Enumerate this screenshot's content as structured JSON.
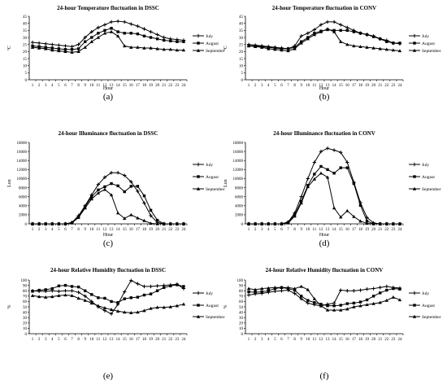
{
  "chart_data": [
    {
      "type": "line",
      "panel": "(a)",
      "title": "24-hour Temperature fluctuation in DSSC",
      "xlabel": "Hour",
      "ylabel": "ºC",
      "x": [
        1,
        2,
        3,
        4,
        5,
        6,
        7,
        8,
        9,
        10,
        11,
        12,
        13,
        14,
        15,
        16,
        17,
        18,
        19,
        20,
        21,
        22,
        23,
        24
      ],
      "ylim": [
        0,
        45
      ],
      "yticks": [
        0,
        5,
        10,
        15,
        20,
        25,
        30,
        35,
        40,
        45
      ],
      "grid": false,
      "legend": "right",
      "series": [
        {
          "name": "July",
          "marker": "plus",
          "values": [
            26.5,
            26,
            25.5,
            25,
            24.5,
            24,
            23.5,
            25,
            30,
            34,
            37,
            39,
            41,
            41.5,
            41,
            39.5,
            38,
            36,
            34,
            32,
            30,
            29,
            28.5,
            28
          ]
        },
        {
          "name": "August",
          "marker": "square",
          "values": [
            24,
            23.5,
            23,
            22.5,
            22,
            21.5,
            21.5,
            22,
            27,
            30,
            33,
            35,
            36.5,
            34,
            33,
            33,
            32.5,
            31,
            30,
            29,
            28,
            27.5,
            27,
            27
          ]
        },
        {
          "name": "September",
          "marker": "triangle",
          "values": [
            23,
            22.5,
            22,
            21,
            20.5,
            20,
            19.5,
            20,
            23,
            27,
            30,
            33,
            34,
            31,
            24,
            23,
            23,
            22.5,
            22.5,
            22,
            21.5,
            21.5,
            21,
            21
          ]
        }
      ]
    },
    {
      "type": "line",
      "panel": "(b)",
      "title": "24-hour Temperature fluctuation in CONV",
      "xlabel": "Hour",
      "ylabel": "ºC",
      "x": [
        1,
        2,
        3,
        4,
        5,
        6,
        7,
        8,
        9,
        10,
        11,
        12,
        13,
        14,
        15,
        16,
        17,
        18,
        19,
        20,
        21,
        22,
        23,
        24
      ],
      "ylim": [
        0,
        45
      ],
      "yticks": [
        0,
        5,
        10,
        15,
        20,
        25,
        30,
        35,
        40,
        45
      ],
      "grid": false,
      "legend": "right",
      "series": [
        {
          "name": "July",
          "marker": "plus",
          "values": [
            25,
            24.5,
            24,
            23.5,
            23,
            22.5,
            22,
            24,
            31,
            33,
            35.5,
            39,
            41,
            41,
            39,
            37,
            35,
            33,
            32,
            31,
            29,
            28,
            26,
            25.5
          ]
        },
        {
          "name": "August",
          "marker": "square",
          "values": [
            24,
            24,
            23.5,
            23,
            22.5,
            22,
            22,
            23,
            27,
            30,
            33,
            34.5,
            35.5,
            35,
            35,
            35,
            34,
            33,
            32,
            30.5,
            29,
            27,
            26,
            26
          ]
        },
        {
          "name": "September",
          "marker": "triangle",
          "values": [
            24,
            23.5,
            23,
            22,
            21.5,
            21,
            20.5,
            22,
            26,
            29,
            32,
            34,
            36,
            34,
            27,
            25,
            24,
            23.5,
            23,
            22.5,
            22,
            21.5,
            21,
            20.5
          ]
        }
      ]
    },
    {
      "type": "line",
      "panel": "(c)",
      "title": "24-hour Illuminance fluctuation in DSSC",
      "xlabel": "Hour",
      "ylabel": "Lux",
      "x": [
        1,
        2,
        3,
        4,
        5,
        6,
        7,
        8,
        9,
        10,
        11,
        12,
        13,
        14,
        15,
        16,
        17,
        18,
        19,
        20,
        21,
        22,
        23,
        24
      ],
      "ylim": [
        0,
        18000
      ],
      "yticks": [
        0,
        2000,
        4000,
        6000,
        8000,
        10000,
        12000,
        14000,
        16000,
        18000
      ],
      "grid": false,
      "legend": "right",
      "series": [
        {
          "name": "July",
          "marker": "plus",
          "values": [
            0,
            0,
            0,
            0,
            0,
            0,
            300,
            1800,
            4000,
            6400,
            8700,
            10300,
            11300,
            11300,
            10700,
            9300,
            7200,
            4600,
            1800,
            300,
            0,
            0,
            0,
            0
          ]
        },
        {
          "name": "August",
          "marker": "square",
          "values": [
            0,
            0,
            0,
            0,
            0,
            0,
            200,
            1500,
            3800,
            6000,
            7500,
            8200,
            8900,
            8400,
            7100,
            8300,
            8300,
            6200,
            3000,
            800,
            0,
            0,
            0,
            0
          ]
        },
        {
          "name": "September",
          "marker": "triangle",
          "values": [
            0,
            0,
            0,
            0,
            0,
            0,
            200,
            1400,
            3500,
            5500,
            6800,
            7600,
            6400,
            2400,
            1200,
            2000,
            1300,
            700,
            100,
            0,
            0,
            0,
            0,
            0
          ]
        }
      ]
    },
    {
      "type": "line",
      "panel": "(d)",
      "title": "24-hour Illuminance fluctuation in CONV",
      "xlabel": "Hour",
      "ylabel": "Lux",
      "x": [
        1,
        2,
        3,
        4,
        5,
        6,
        7,
        8,
        9,
        10,
        11,
        12,
        13,
        14,
        15,
        16,
        17,
        18,
        19,
        20,
        21,
        22,
        23,
        24
      ],
      "ylim": [
        0,
        18000
      ],
      "yticks": [
        0,
        2000,
        4000,
        6000,
        8000,
        10000,
        12000,
        14000,
        16000,
        18000
      ],
      "grid": false,
      "legend": "right",
      "series": [
        {
          "name": "July",
          "marker": "plus",
          "values": [
            0,
            0,
            0,
            0,
            0,
            0,
            400,
            2400,
            6000,
            10000,
            13600,
            16000,
            16700,
            16300,
            15800,
            13600,
            9200,
            4700,
            1400,
            200,
            0,
            0,
            0,
            0
          ]
        },
        {
          "name": "August",
          "marker": "square",
          "values": [
            0,
            0,
            0,
            0,
            0,
            0,
            300,
            2000,
            5000,
            8500,
            11000,
            12700,
            12000,
            11200,
            12400,
            12400,
            8900,
            4100,
            600,
            0,
            0,
            0,
            0,
            0
          ]
        },
        {
          "name": "September",
          "marker": "triangle",
          "values": [
            0,
            0,
            0,
            0,
            0,
            0,
            200,
            1700,
            4600,
            8200,
            9900,
            11200,
            10300,
            3500,
            1500,
            2900,
            1600,
            600,
            100,
            0,
            0,
            0,
            0,
            0
          ]
        }
      ]
    },
    {
      "type": "line",
      "panel": "(e)",
      "title": "24-hour Relative Humidity fluctuation in DSSC",
      "xlabel": "",
      "ylabel": "%",
      "x": [
        1,
        2,
        3,
        4,
        5,
        6,
        7,
        8,
        9,
        10,
        11,
        12,
        13,
        14,
        15,
        16,
        17,
        18,
        19,
        20,
        21,
        22,
        23,
        24
      ],
      "ylim": [
        0,
        100
      ],
      "yticks": [
        0,
        10,
        20,
        30,
        40,
        50,
        60,
        70,
        80,
        90,
        100
      ],
      "grid": false,
      "legend": "right",
      "series": [
        {
          "name": "July",
          "marker": "plus",
          "values": [
            80,
            79,
            79,
            80,
            79,
            80,
            80,
            77,
            70,
            60,
            50,
            43,
            37,
            55,
            78,
            99,
            93,
            88,
            88,
            89,
            90,
            91,
            92,
            84
          ]
        },
        {
          "name": "August",
          "marker": "square",
          "values": [
            79,
            81,
            82,
            84,
            89,
            90,
            88,
            87,
            80,
            73,
            67,
            66,
            60,
            58,
            65,
            67,
            68,
            72,
            74,
            80,
            86,
            89,
            91,
            88
          ]
        },
        {
          "name": "September",
          "marker": "triangle",
          "values": [
            71,
            69,
            68,
            69,
            71,
            72,
            71,
            66,
            62,
            57,
            52,
            48,
            45,
            42,
            40,
            39,
            40,
            43,
            47,
            49,
            49,
            50,
            52,
            55
          ]
        }
      ]
    },
    {
      "type": "line",
      "panel": "(f)",
      "title": "24-hour Relative Humidity fluctuation in CONV",
      "xlabel": "",
      "ylabel": "%",
      "x": [
        1,
        2,
        3,
        4,
        5,
        6,
        7,
        8,
        9,
        10,
        11,
        12,
        13,
        14,
        15,
        16,
        17,
        18,
        19,
        20,
        21,
        22,
        23,
        24
      ],
      "ylim": [
        0,
        100
      ],
      "yticks": [
        0,
        10,
        20,
        30,
        40,
        50,
        60,
        70,
        80,
        90,
        100
      ],
      "grid": false,
      "legend": "right",
      "series": [
        {
          "name": "July",
          "marker": "plus",
          "values": [
            72,
            74,
            75,
            77,
            79,
            80,
            81,
            75,
            65,
            57,
            54,
            52,
            55,
            57,
            81,
            80,
            80,
            81,
            83,
            84,
            86,
            88,
            86,
            85
          ]
        },
        {
          "name": "August",
          "marker": "square",
          "values": [
            78,
            77,
            78,
            80,
            84,
            86,
            84,
            81,
            70,
            62,
            58,
            55,
            52,
            52,
            53,
            56,
            57,
            59,
            63,
            70,
            76,
            81,
            84,
            83
          ]
        },
        {
          "name": "September",
          "marker": "triangle",
          "values": [
            84,
            82,
            84,
            85,
            86,
            86,
            86,
            84,
            88,
            82,
            65,
            52,
            44,
            44,
            44,
            46,
            50,
            52,
            54,
            56,
            58,
            62,
            68,
            63
          ]
        }
      ]
    }
  ]
}
